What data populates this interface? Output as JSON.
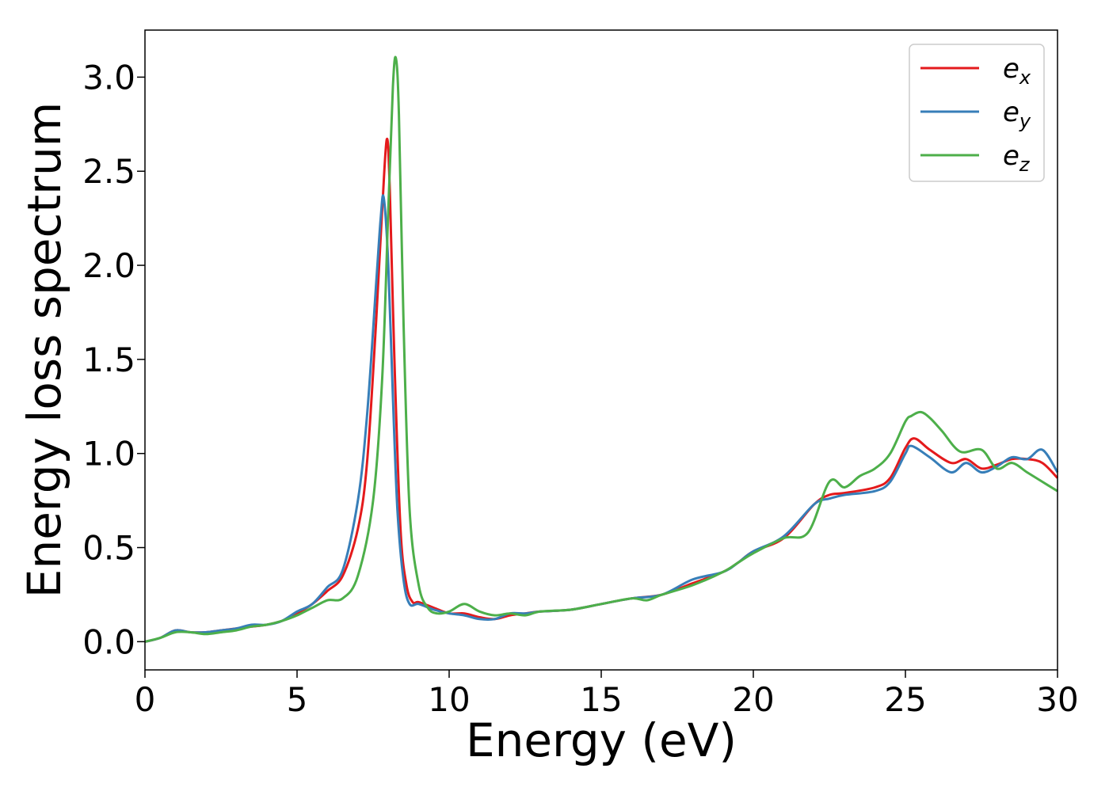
{
  "chart_data": {
    "type": "line",
    "title": "",
    "xlabel": "Energy (eV)",
    "ylabel": "Energy loss spectrum",
    "xlim": [
      0,
      30
    ],
    "ylim": [
      -0.15,
      3.25
    ],
    "xticks": [
      0,
      5,
      10,
      15,
      20,
      25,
      30
    ],
    "yticks": [
      0.0,
      0.5,
      1.0,
      1.5,
      2.0,
      2.5,
      3.0
    ],
    "xtick_labels": [
      "0",
      "5",
      "10",
      "15",
      "20",
      "25",
      "30"
    ],
    "ytick_labels": [
      "0.0",
      "0.5",
      "1.0",
      "1.5",
      "2.0",
      "2.5",
      "3.0"
    ],
    "grid": false,
    "legend_position": "top-right",
    "series": [
      {
        "name": "e",
        "subscript": "x",
        "color": "#e41a1c",
        "x": [
          0,
          0.5,
          1.0,
          1.5,
          2.0,
          2.5,
          3.0,
          3.5,
          4.0,
          4.5,
          5.0,
          5.5,
          6.0,
          6.5,
          7.0,
          7.3,
          7.6,
          7.8,
          7.95,
          8.05,
          8.2,
          8.4,
          8.6,
          8.8,
          9.0,
          9.5,
          10.0,
          10.5,
          11.0,
          11.5,
          12.0,
          12.5,
          13.0,
          14.0,
          15.0,
          16.0,
          17.0,
          18.0,
          19.0,
          19.5,
          20.0,
          21.0,
          22.0,
          22.5,
          23.0,
          24.0,
          24.5,
          25.0,
          25.3,
          25.8,
          26.5,
          27.0,
          27.5,
          28.0,
          28.5,
          29.0,
          29.5,
          30.0
        ],
        "y": [
          0.0,
          0.02,
          0.06,
          0.05,
          0.05,
          0.06,
          0.07,
          0.08,
          0.09,
          0.11,
          0.15,
          0.2,
          0.27,
          0.35,
          0.6,
          0.95,
          1.7,
          2.3,
          2.67,
          2.4,
          1.5,
          0.6,
          0.3,
          0.21,
          0.21,
          0.18,
          0.15,
          0.15,
          0.13,
          0.12,
          0.14,
          0.15,
          0.16,
          0.17,
          0.2,
          0.23,
          0.25,
          0.31,
          0.37,
          0.42,
          0.48,
          0.55,
          0.73,
          0.78,
          0.79,
          0.82,
          0.87,
          1.03,
          1.08,
          1.02,
          0.95,
          0.97,
          0.92,
          0.94,
          0.97,
          0.97,
          0.95,
          0.87
        ]
      },
      {
        "name": "e",
        "subscript": "y",
        "color": "#377eb8",
        "x": [
          0,
          0.5,
          1.0,
          1.5,
          2.0,
          2.5,
          3.0,
          3.5,
          4.0,
          4.5,
          5.0,
          5.5,
          6.0,
          6.5,
          7.0,
          7.3,
          7.6,
          7.75,
          7.85,
          8.0,
          8.15,
          8.3,
          8.5,
          8.7,
          9.0,
          9.5,
          10.0,
          10.5,
          11.0,
          11.5,
          12.0,
          12.5,
          13.0,
          14.0,
          15.0,
          16.0,
          17.0,
          18.0,
          19.0,
          19.5,
          20.0,
          21.0,
          22.0,
          22.5,
          23.0,
          24.0,
          24.5,
          25.0,
          25.2,
          25.8,
          26.5,
          27.0,
          27.5,
          28.0,
          28.5,
          29.0,
          29.5,
          30.0
        ],
        "y": [
          0.0,
          0.02,
          0.06,
          0.05,
          0.05,
          0.06,
          0.07,
          0.09,
          0.09,
          0.11,
          0.16,
          0.2,
          0.29,
          0.38,
          0.75,
          1.2,
          1.9,
          2.25,
          2.36,
          2.0,
          1.3,
          0.7,
          0.33,
          0.2,
          0.2,
          0.17,
          0.15,
          0.14,
          0.12,
          0.12,
          0.15,
          0.15,
          0.16,
          0.17,
          0.2,
          0.23,
          0.25,
          0.33,
          0.37,
          0.42,
          0.48,
          0.56,
          0.73,
          0.76,
          0.78,
          0.8,
          0.85,
          1.0,
          1.04,
          0.98,
          0.9,
          0.95,
          0.9,
          0.93,
          0.98,
          0.97,
          1.02,
          0.9
        ]
      },
      {
        "name": "e",
        "subscript": "z",
        "color": "#4daf4a",
        "x": [
          0,
          0.5,
          1.0,
          1.5,
          2.0,
          2.5,
          3.0,
          3.5,
          4.0,
          4.5,
          5.0,
          5.5,
          6.0,
          6.5,
          7.0,
          7.5,
          7.8,
          8.0,
          8.15,
          8.25,
          8.35,
          8.5,
          8.7,
          9.0,
          9.3,
          9.6,
          10.0,
          10.5,
          11.0,
          11.5,
          12.0,
          12.5,
          13.0,
          14.0,
          15.0,
          16.0,
          16.5,
          17.0,
          18.0,
          19.0,
          19.5,
          20.0,
          21.0,
          21.8,
          22.5,
          23.0,
          23.5,
          24.0,
          24.5,
          25.0,
          25.2,
          25.5,
          25.8,
          26.2,
          26.8,
          27.5,
          28.0,
          28.5,
          29.0,
          29.5,
          30.0
        ],
        "y": [
          0.0,
          0.02,
          0.05,
          0.05,
          0.04,
          0.05,
          0.06,
          0.08,
          0.09,
          0.11,
          0.14,
          0.18,
          0.22,
          0.23,
          0.35,
          0.75,
          1.4,
          2.3,
          2.95,
          3.1,
          2.8,
          1.7,
          0.7,
          0.3,
          0.18,
          0.15,
          0.16,
          0.2,
          0.16,
          0.14,
          0.15,
          0.14,
          0.16,
          0.17,
          0.2,
          0.23,
          0.22,
          0.25,
          0.3,
          0.37,
          0.42,
          0.47,
          0.55,
          0.58,
          0.85,
          0.82,
          0.88,
          0.92,
          1.0,
          1.17,
          1.2,
          1.22,
          1.19,
          1.12,
          1.01,
          1.02,
          0.92,
          0.95,
          0.9,
          0.85,
          0.8
        ]
      }
    ]
  }
}
